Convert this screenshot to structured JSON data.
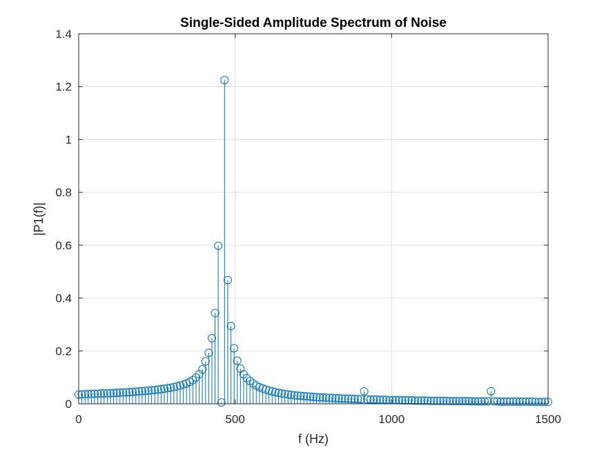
{
  "chart_data": {
    "type": "stem",
    "title": "Single-Sided Amplitude Spectrum of Noise",
    "xlabel": "f (Hz)",
    "ylabel": "|P1(f)|",
    "xlim": [
      0,
      1500
    ],
    "ylim": [
      0,
      1.4
    ],
    "xticks": [
      0,
      500,
      1000,
      1500
    ],
    "xtick_labels": [
      "0",
      "500",
      "1000",
      "1500"
    ],
    "yticks": [
      0,
      0.2,
      0.4,
      0.6,
      0.8,
      1.0,
      1.2,
      1.4
    ],
    "ytick_labels": [
      "0",
      "0.2",
      "0.4",
      "0.6",
      "0.8",
      "1",
      "1.2",
      "1.4"
    ],
    "grid": true,
    "color": "#0072BD",
    "x_step": 10.1351,
    "x": [
      0,
      10.1,
      20.3,
      30.4,
      40.5,
      50.7,
      60.8,
      70.9,
      81.1,
      91.2,
      101.4,
      111.5,
      121.6,
      131.8,
      141.9,
      152.0,
      162.2,
      172.3,
      182.4,
      192.6,
      202.7,
      212.8,
      223.0,
      233.1,
      243.2,
      253.4,
      263.5,
      273.6,
      283.8,
      293.9,
      304.1,
      314.2,
      324.3,
      334.5,
      344.6,
      354.7,
      364.9,
      375.0,
      385.1,
      395.3,
      405.4,
      415.5,
      425.7,
      435.8,
      445.9,
      456.1,
      466.2,
      476.4,
      486.5,
      496.6,
      506.8,
      516.9,
      527.0,
      537.2,
      547.3,
      557.4,
      567.6,
      577.7,
      587.8,
      598.0,
      608.1,
      618.2,
      628.4,
      638.5,
      648.6,
      658.8,
      668.9,
      679.1,
      689.2,
      699.3,
      709.5,
      719.6,
      729.7,
      739.9,
      750.0,
      760.1,
      770.3,
      780.4,
      790.5,
      800.7,
      810.8,
      820.9,
      831.1,
      841.2,
      851.4,
      861.5,
      871.6,
      881.8,
      891.9,
      902.0,
      912.2,
      922.3,
      932.4,
      942.6,
      952.7,
      962.8,
      973.0,
      983.1,
      993.2,
      1003.4,
      1013.5,
      1023.6,
      1033.8,
      1043.9,
      1054.1,
      1064.2,
      1074.3,
      1084.5,
      1094.6,
      1104.7,
      1114.9,
      1125.0,
      1135.1,
      1145.3,
      1155.4,
      1165.5,
      1175.7,
      1185.8,
      1195.9,
      1206.1,
      1216.2,
      1226.4,
      1236.5,
      1246.6,
      1256.8,
      1266.9,
      1277.0,
      1287.2,
      1297.3,
      1307.4,
      1317.6,
      1327.7,
      1337.8,
      1348.0,
      1358.1,
      1368.2,
      1378.4,
      1388.5,
      1398.6,
      1408.8,
      1418.9,
      1429.1,
      1439.2,
      1449.3,
      1459.5,
      1469.6,
      1479.7,
      1489.9,
      1500.0
    ],
    "values": [
      0.035,
      0.036,
      0.036,
      0.037,
      0.037,
      0.038,
      0.038,
      0.039,
      0.039,
      0.04,
      0.04,
      0.041,
      0.041,
      0.042,
      0.043,
      0.043,
      0.044,
      0.045,
      0.046,
      0.047,
      0.048,
      0.049,
      0.05,
      0.051,
      0.052,
      0.054,
      0.055,
      0.057,
      0.059,
      0.061,
      0.063,
      0.066,
      0.069,
      0.073,
      0.077,
      0.083,
      0.09,
      0.099,
      0.112,
      0.13,
      0.16,
      0.193,
      0.248,
      0.343,
      0.598,
      0.005,
      1.225,
      0.468,
      0.294,
      0.21,
      0.163,
      0.133,
      0.112,
      0.097,
      0.086,
      0.077,
      0.069,
      0.063,
      0.058,
      0.054,
      0.05,
      0.047,
      0.044,
      0.041,
      0.039,
      0.037,
      0.035,
      0.034,
      0.032,
      0.031,
      0.03,
      0.029,
      0.028,
      0.027,
      0.026,
      0.025,
      0.024,
      0.024,
      0.023,
      0.022,
      0.022,
      0.021,
      0.021,
      0.02,
      0.02,
      0.019,
      0.019,
      0.018,
      0.018,
      0.017,
      0.047,
      0.017,
      0.016,
      0.016,
      0.016,
      0.015,
      0.015,
      0.015,
      0.014,
      0.014,
      0.014,
      0.014,
      0.013,
      0.013,
      0.013,
      0.013,
      0.012,
      0.012,
      0.012,
      0.012,
      0.012,
      0.011,
      0.011,
      0.011,
      0.011,
      0.011,
      0.011,
      0.01,
      0.01,
      0.01,
      0.01,
      0.01,
      0.01,
      0.01,
      0.009,
      0.009,
      0.009,
      0.009,
      0.009,
      0.009,
      0.048,
      0.009,
      0.009,
      0.008,
      0.008,
      0.008,
      0.008,
      0.008,
      0.008,
      0.008,
      0.008,
      0.008,
      0.008,
      0.008,
      0.007,
      0.007,
      0.007,
      0.007,
      0.007
    ]
  }
}
